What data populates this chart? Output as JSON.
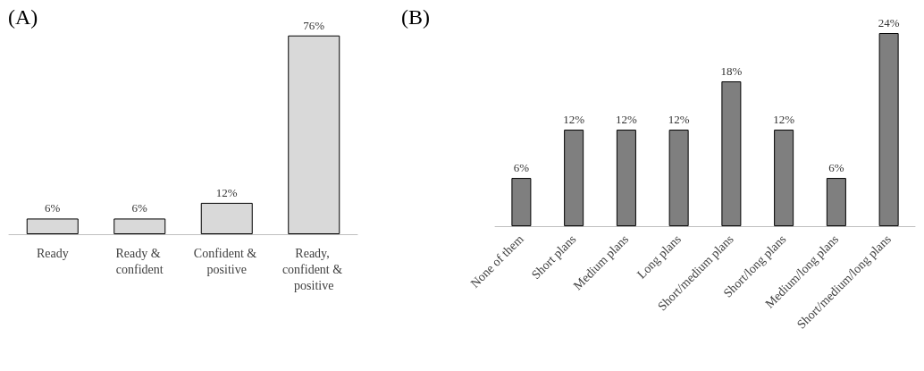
{
  "chart_data": [
    {
      "type": "bar",
      "title": "(A)",
      "categories": [
        "Ready",
        "Ready & confident",
        "Confident & positive",
        "Ready, confident & positive"
      ],
      "values": [
        6,
        6,
        12,
        76
      ],
      "value_labels": [
        "6%",
        "6%",
        "12%",
        "76%"
      ],
      "color": "#d9d9d9"
    },
    {
      "type": "bar",
      "title": "(B)",
      "categories": [
        "None of them",
        "Short plans",
        "Medium plans",
        "Long plans",
        "Short/medium plans",
        "Short/long plans",
        "Medium/long plans",
        "Short/medium/long plans"
      ],
      "values": [
        6,
        12,
        12,
        12,
        18,
        12,
        6,
        24
      ],
      "value_labels": [
        "6%",
        "12%",
        "12%",
        "12%",
        "18%",
        "12%",
        "6%",
        "24%"
      ],
      "color": "#7f7f7f"
    }
  ]
}
